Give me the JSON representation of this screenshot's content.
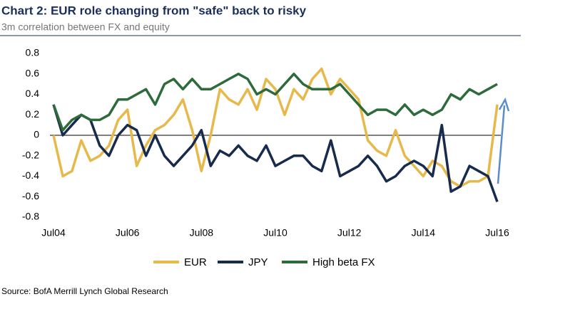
{
  "chart_data": {
    "type": "line",
    "title": "Chart 2: EUR role changing from \"safe\" back to risky",
    "subtitle": "3m correlation between FX and equity",
    "source": "Source: BofA Merrill Lynch Global Research",
    "x": [
      2004.5,
      2004.75,
      2005,
      2005.25,
      2005.5,
      2005.75,
      2006,
      2006.25,
      2006.5,
      2006.75,
      2007,
      2007.25,
      2007.5,
      2007.75,
      2008,
      2008.25,
      2008.5,
      2008.75,
      2009,
      2009.25,
      2009.5,
      2009.75,
      2010,
      2010.25,
      2010.5,
      2010.75,
      2011,
      2011.25,
      2011.5,
      2011.75,
      2012,
      2012.25,
      2012.5,
      2012.75,
      2013,
      2013.25,
      2013.5,
      2013.75,
      2014,
      2014.25,
      2014.5,
      2014.75,
      2015,
      2015.25,
      2015.5,
      2015.75,
      2016,
      2016.25,
      2016.5
    ],
    "series": [
      {
        "name": "EUR",
        "color": "#e6b94a",
        "values": [
          0.0,
          -0.4,
          -0.35,
          -0.05,
          -0.25,
          -0.2,
          -0.1,
          0.15,
          0.25,
          -0.3,
          -0.1,
          0.05,
          0.1,
          0.2,
          0.35,
          0.05,
          -0.35,
          0.0,
          0.45,
          0.35,
          0.3,
          0.45,
          0.25,
          0.55,
          0.45,
          0.2,
          0.45,
          0.35,
          0.55,
          0.65,
          0.4,
          0.55,
          0.45,
          0.35,
          -0.05,
          -0.15,
          -0.2,
          0.05,
          -0.2,
          -0.3,
          -0.4,
          -0.25,
          -0.3,
          -0.45,
          -0.5,
          -0.45,
          -0.45,
          -0.4,
          0.3
        ]
      },
      {
        "name": "JPY",
        "color": "#172b4d",
        "values": [
          0.3,
          0.0,
          0.1,
          0.2,
          0.15,
          -0.1,
          -0.2,
          0.0,
          0.1,
          0.05,
          -0.2,
          0.0,
          -0.2,
          -0.3,
          -0.2,
          -0.1,
          0.05,
          -0.3,
          -0.15,
          -0.2,
          -0.1,
          -0.2,
          -0.25,
          -0.1,
          -0.3,
          -0.25,
          -0.2,
          -0.2,
          -0.3,
          -0.35,
          -0.05,
          -0.4,
          -0.35,
          -0.3,
          -0.2,
          -0.3,
          -0.45,
          -0.4,
          -0.3,
          -0.25,
          -0.3,
          -0.4,
          0.1,
          -0.55,
          -0.5,
          -0.3,
          -0.35,
          -0.4,
          -0.65
        ]
      },
      {
        "name": "High beta FX",
        "color": "#2e6b3a",
        "values": [
          0.3,
          0.05,
          0.15,
          0.2,
          0.15,
          0.15,
          0.2,
          0.35,
          0.35,
          0.4,
          0.45,
          0.3,
          0.5,
          0.55,
          0.45,
          0.55,
          0.45,
          0.45,
          0.5,
          0.55,
          0.6,
          0.55,
          0.4,
          0.45,
          0.4,
          0.5,
          0.6,
          0.5,
          0.45,
          0.45,
          0.45,
          0.5,
          0.4,
          0.3,
          0.2,
          0.25,
          0.25,
          0.2,
          0.3,
          0.2,
          0.25,
          0.2,
          0.25,
          0.4,
          0.35,
          0.45,
          0.4,
          0.45,
          0.5
        ]
      }
    ],
    "xlim": [
      2004.5,
      2016.5
    ],
    "xticks": [
      {
        "value": 2004.5,
        "label": "Jul04"
      },
      {
        "value": 2006.5,
        "label": "Jul06"
      },
      {
        "value": 2008.5,
        "label": "Jul08"
      },
      {
        "value": 2010.5,
        "label": "Jul10"
      },
      {
        "value": 2012.5,
        "label": "Jul12"
      },
      {
        "value": 2014.5,
        "label": "Jul14"
      },
      {
        "value": 2016.5,
        "label": "Jul16"
      }
    ],
    "ylim": [
      -0.8,
      0.8
    ],
    "yticks": [
      0.8,
      0.6,
      0.4,
      0.2,
      0,
      -0.2,
      -0.4,
      -0.6,
      -0.8
    ]
  }
}
